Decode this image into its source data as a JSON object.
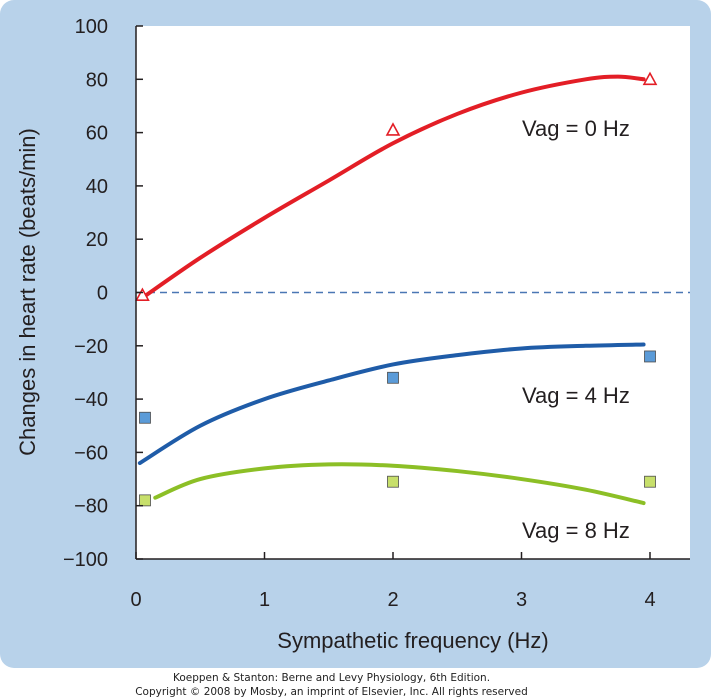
{
  "chart_data": {
    "type": "line",
    "title": "",
    "xlabel": "Sympathetic frequency (Hz)",
    "ylabel": "Changes in heart rate (beats/min)",
    "xlim": [
      0,
      4.2
    ],
    "ylim": [
      -100,
      100
    ],
    "x_ticks": [
      "0",
      "1",
      "2",
      "3",
      "4"
    ],
    "y_ticks": [
      "100",
      "80",
      "60",
      "40",
      "20",
      "0",
      "−20",
      "−40",
      "−60",
      "−80",
      "−100"
    ],
    "zero_line": {
      "y": 0,
      "style": "dashed",
      "color": "#4a77b4"
    },
    "grid": false,
    "series": [
      {
        "name": "Vag = 0 Hz",
        "color": "#e31e26",
        "marker": "triangle",
        "marker_fill": "#ffffff",
        "points": [
          {
            "x": 0.05,
            "y": -1
          },
          {
            "x": 2,
            "y": 61
          },
          {
            "x": 4,
            "y": 80
          }
        ],
        "fit_curve": [
          {
            "x": 0.05,
            "y": -2
          },
          {
            "x": 0.5,
            "y": 13
          },
          {
            "x": 1,
            "y": 28
          },
          {
            "x": 1.5,
            "y": 42
          },
          {
            "x": 2,
            "y": 56
          },
          {
            "x": 2.5,
            "y": 67
          },
          {
            "x": 3,
            "y": 75
          },
          {
            "x": 3.5,
            "y": 80
          },
          {
            "x": 3.75,
            "y": 81
          },
          {
            "x": 3.95,
            "y": 80
          }
        ]
      },
      {
        "name": "Vag = 4 Hz",
        "color": "#1f5ca8",
        "marker": "square",
        "marker_fill": "#5b9bd8",
        "points": [
          {
            "x": 0.07,
            "y": -47
          },
          {
            "x": 2,
            "y": -32
          },
          {
            "x": 4,
            "y": -24
          }
        ],
        "fit_curve": [
          {
            "x": 0.03,
            "y": -64
          },
          {
            "x": 0.5,
            "y": -50
          },
          {
            "x": 1,
            "y": -40
          },
          {
            "x": 1.5,
            "y": -33
          },
          {
            "x": 2,
            "y": -27
          },
          {
            "x": 2.5,
            "y": -23.5
          },
          {
            "x": 3,
            "y": -21
          },
          {
            "x": 3.5,
            "y": -20
          },
          {
            "x": 3.95,
            "y": -19.5
          }
        ]
      },
      {
        "name": "Vag = 8 Hz",
        "color": "#8cbf26",
        "marker": "square",
        "marker_fill": "#c7df6b",
        "points": [
          {
            "x": 0.07,
            "y": -78
          },
          {
            "x": 2,
            "y": -71
          },
          {
            "x": 4,
            "y": -71
          }
        ],
        "fit_curve": [
          {
            "x": 0.15,
            "y": -77
          },
          {
            "x": 0.5,
            "y": -70
          },
          {
            "x": 1,
            "y": -66
          },
          {
            "x": 1.5,
            "y": -64.5
          },
          {
            "x": 2,
            "y": -65
          },
          {
            "x": 2.5,
            "y": -67
          },
          {
            "x": 3,
            "y": -70
          },
          {
            "x": 3.5,
            "y": -74
          },
          {
            "x": 3.95,
            "y": -79
          }
        ]
      }
    ]
  },
  "credits": {
    "line1": "Koeppen & Stanton: Berne and Levy Physiology, 6th Edition.",
    "line2": "Copyright © 2008 by Mosby, an imprint of Elsevier, Inc. All rights reserved"
  }
}
